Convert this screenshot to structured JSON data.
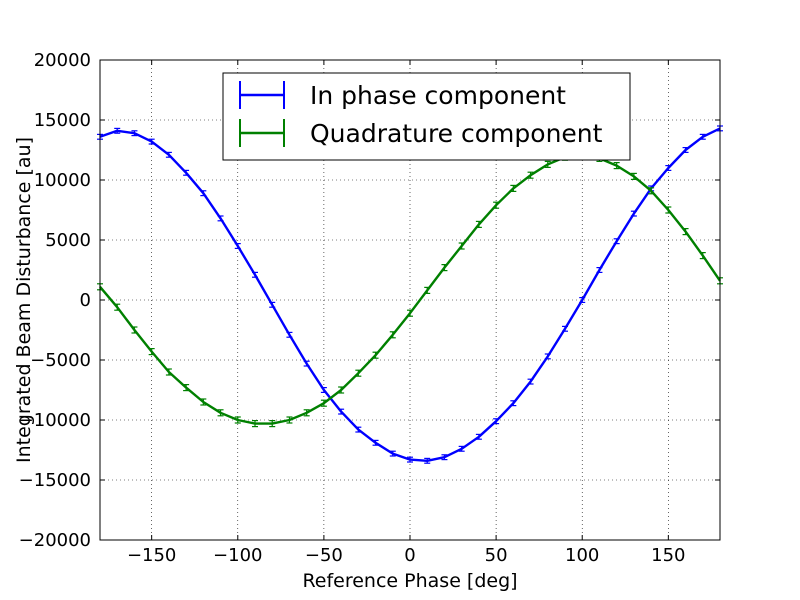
{
  "chart_data": {
    "type": "line",
    "xlabel": "Reference Phase [deg]",
    "ylabel": "Integrated Beam Disturbance [au]",
    "xlim": [
      -180,
      180
    ],
    "ylim": [
      -20000,
      20000
    ],
    "xticks": [
      -150,
      -100,
      -50,
      0,
      50,
      100,
      150
    ],
    "xtick_labels": [
      "−150",
      "−100",
      "−50",
      "0",
      "50",
      "100",
      "150"
    ],
    "yticks": [
      20000,
      15000,
      10000,
      5000,
      0,
      -5000,
      -10000,
      -15000,
      -20000
    ],
    "ytick_labels": [
      "20000",
      "15000",
      "10000",
      "5000",
      "0",
      "−5000",
      "−10000",
      "−15000",
      "−20000"
    ],
    "grid": true,
    "error_bars": true,
    "legend_position": "top-center",
    "x": [
      -180,
      -170,
      -160,
      -150,
      -140,
      -130,
      -120,
      -110,
      -100,
      -90,
      -80,
      -70,
      -60,
      -50,
      -40,
      -30,
      -20,
      -10,
      0,
      10,
      20,
      30,
      40,
      50,
      60,
      70,
      80,
      90,
      100,
      110,
      120,
      130,
      140,
      150,
      160,
      170,
      180
    ],
    "series": [
      {
        "name": "In phase component",
        "color": "#0000ff",
        "values": [
          13600,
          14100,
          13900,
          13200,
          12100,
          10600,
          8900,
          6800,
          4500,
          2100,
          -400,
          -2900,
          -5300,
          -7500,
          -9300,
          -10800,
          -11900,
          -12800,
          -13300,
          -13400,
          -13100,
          -12400,
          -11400,
          -10100,
          -8600,
          -6800,
          -4700,
          -2400,
          0,
          2500,
          4900,
          7200,
          9300,
          11000,
          12500,
          13600,
          14300
        ],
        "error": 200
      },
      {
        "name": "Quadrature component",
        "color": "#008000",
        "values": [
          1100,
          -600,
          -2500,
          -4300,
          -6000,
          -7300,
          -8500,
          -9400,
          -10000,
          -10300,
          -10300,
          -10000,
          -9400,
          -8600,
          -7500,
          -6100,
          -4600,
          -2900,
          -1100,
          800,
          2700,
          4500,
          6300,
          7900,
          9300,
          10400,
          11300,
          11900,
          12000,
          11800,
          11200,
          10300,
          9100,
          7500,
          5700,
          3700,
          1600
        ],
        "error": 250
      }
    ]
  }
}
